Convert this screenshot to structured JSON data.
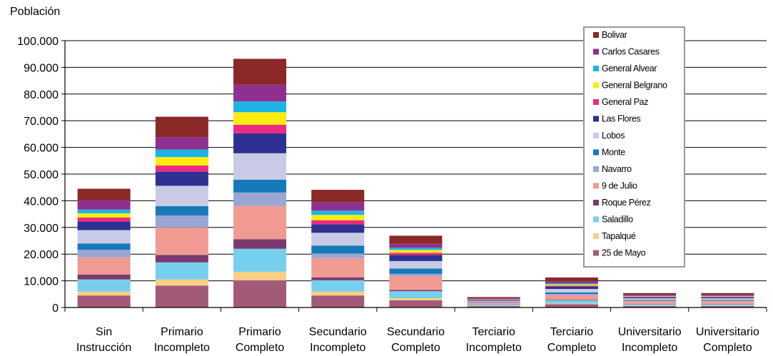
{
  "chart_data": {
    "type": "bar",
    "stacked": true,
    "ylabel": "Población",
    "ylim": [
      0,
      100000
    ],
    "ytick_step": 10000,
    "ytick_labels": [
      "0",
      "10.000",
      "20.000",
      "30.000",
      "40.000",
      "50.000",
      "60.000",
      "70.000",
      "80.000",
      "90.000",
      "100.000"
    ],
    "grid": true,
    "legend_position": "top-right",
    "categories": [
      [
        "Sin",
        "Instrucción"
      ],
      [
        "Primario",
        "Incompleto"
      ],
      [
        "Primario",
        "Completo"
      ],
      [
        "Secundario",
        "Incompleto"
      ],
      [
        "Secundario",
        "Completo"
      ],
      [
        "Terciario",
        "Incompleto"
      ],
      [
        "Terciario",
        "Completo"
      ],
      [
        "Universitario",
        "Incompleto"
      ],
      [
        "Universitario",
        "Completo"
      ]
    ],
    "series": [
      {
        "name": "25 de Mayo",
        "color": "#a35a78",
        "values": [
          4500,
          8200,
          10200,
          4500,
          2700,
          500,
          1200,
          600,
          600
        ]
      },
      {
        "name": "Tapalqué",
        "color": "#f7cf85",
        "values": [
          1500,
          2300,
          3200,
          1500,
          800,
          100,
          300,
          150,
          150
        ]
      },
      {
        "name": "Saladillo",
        "color": "#77cfee",
        "values": [
          4500,
          6400,
          8600,
          4200,
          2600,
          400,
          1200,
          500,
          500
        ]
      },
      {
        "name": "Roque Pérez",
        "color": "#7a3a6f",
        "values": [
          1800,
          2800,
          3600,
          1100,
          500,
          100,
          200,
          100,
          100
        ]
      },
      {
        "name": "9 de Julio",
        "color": "#f09a92",
        "values": [
          6500,
          10300,
          12400,
          7200,
          5200,
          700,
          1700,
          1000,
          1000
        ]
      },
      {
        "name": "Navarro",
        "color": "#9aa6d3",
        "values": [
          2800,
          4500,
          5100,
          1700,
          800,
          150,
          450,
          200,
          200
        ]
      },
      {
        "name": "Monte",
        "color": "#1779b8",
        "values": [
          2400,
          3500,
          4800,
          3000,
          2000,
          200,
          600,
          300,
          300
        ]
      },
      {
        "name": "Lobos",
        "color": "#c8cae6",
        "values": [
          5000,
          7600,
          9900,
          4800,
          2800,
          400,
          1300,
          600,
          600
        ]
      },
      {
        "name": "Las Flores",
        "color": "#2e3192",
        "values": [
          3200,
          5300,
          7500,
          3200,
          2300,
          300,
          900,
          400,
          400
        ]
      },
      {
        "name": "General Paz",
        "color": "#ec2a82",
        "values": [
          1500,
          2300,
          3200,
          1500,
          800,
          100,
          300,
          150,
          150
        ]
      },
      {
        "name": "General Belgrano",
        "color": "#fbeb10",
        "values": [
          1600,
          3200,
          4700,
          2000,
          1100,
          100,
          500,
          200,
          200
        ]
      },
      {
        "name": "General Alvear",
        "color": "#1cb4e6",
        "values": [
          1400,
          2800,
          4000,
          1600,
          800,
          100,
          400,
          150,
          150
        ]
      },
      {
        "name": "Carlos Casares",
        "color": "#8e3090",
        "values": [
          3500,
          4600,
          6300,
          3200,
          1500,
          250,
          800,
          400,
          400
        ]
      },
      {
        "name": "Bolivar",
        "color": "#8b2828",
        "values": [
          4300,
          7700,
          9700,
          4600,
          3000,
          500,
          1400,
          650,
          650
        ]
      }
    ]
  }
}
